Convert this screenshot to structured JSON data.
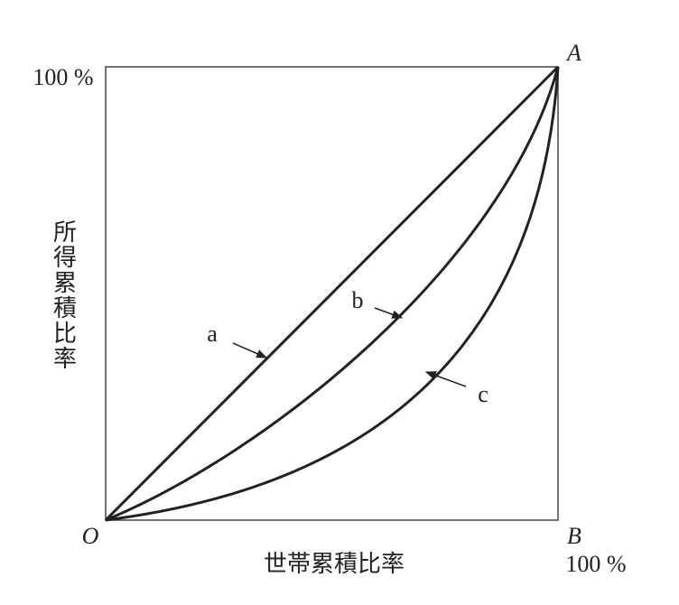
{
  "axes": {
    "y_label": "所得累積比率",
    "x_label": "世帯累積比率",
    "y_max": "100 %",
    "x_max": "100 %"
  },
  "points": {
    "origin": "O",
    "top_right": "A",
    "bottom_right": "B"
  },
  "curves": [
    {
      "label": "a"
    },
    {
      "label": "b"
    },
    {
      "label": "c"
    }
  ]
}
